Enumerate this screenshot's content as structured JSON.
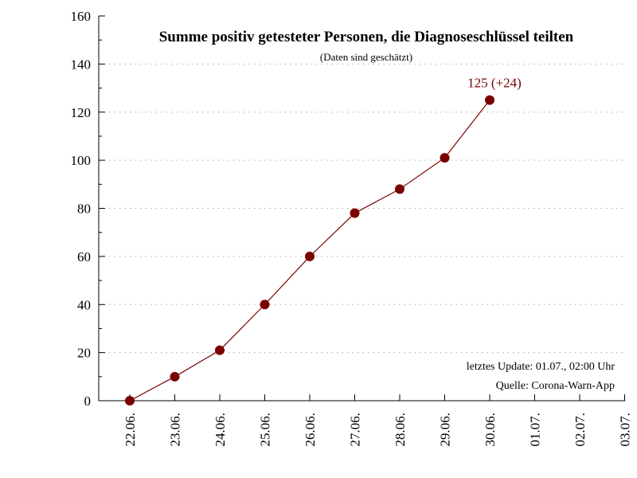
{
  "chart_data": {
    "type": "line",
    "title": "Summe positiv getesteter Personen, die Diagnoseschlüssel teilten",
    "subtitle": "(Daten sind geschätzt)",
    "x_tick_labels": [
      "22.06.",
      "23.06.",
      "24.06.",
      "25.06.",
      "26.06.",
      "27.06.",
      "28.06.",
      "29.06.",
      "30.06.",
      "01.07.",
      "02.07.",
      "03.07."
    ],
    "categories": [
      "22.06.",
      "23.06.",
      "24.06.",
      "25.06.",
      "26.06.",
      "27.06.",
      "28.06.",
      "29.06.",
      "30.06."
    ],
    "values": [
      0,
      10,
      21,
      40,
      60,
      78,
      88,
      101,
      125
    ],
    "ylim": [
      0,
      160
    ],
    "y_ticks": [
      0,
      20,
      40,
      60,
      80,
      100,
      120,
      140,
      160
    ],
    "grid": true,
    "annotation": "125 (+24)",
    "update_note": "letztes Update: 01.07., 02:00 Uhr",
    "source_note": "Quelle: Corona-Warn-App",
    "series_color": "#7a0000",
    "grid_color": "#aaaaaa"
  }
}
